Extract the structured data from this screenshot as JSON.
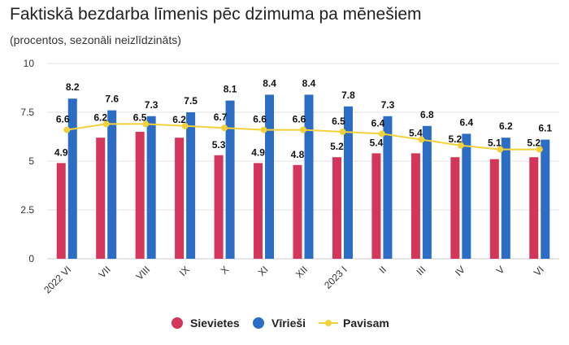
{
  "chart_data": {
    "type": "bar",
    "title": "Faktiskā bezdarba līmenis pēc dzimuma pa mēnešiem",
    "subtitle": "(procentos, sezonāli neizlīdzināts)",
    "categories": [
      "2022 VI",
      "VII",
      "VIII",
      "IX",
      "X",
      "XI",
      "XII",
      "2023 I",
      "II",
      "III",
      "IV",
      "V",
      "VI"
    ],
    "y_ticks": [
      "0",
      "2.5",
      "5",
      "7.5",
      "10"
    ],
    "ylim": [
      0,
      10
    ],
    "grid": true,
    "legend_position": "bottom",
    "series": [
      {
        "name": "Sievietes",
        "kind": "bar",
        "color": "#d3365a",
        "values": [
          4.9,
          6.2,
          6.5,
          6.2,
          5.3,
          4.9,
          4.8,
          5.2,
          5.4,
          5.4,
          5.2,
          5.1,
          5.2
        ],
        "labels": [
          "4.9",
          "6.2",
          "6.5",
          "6.2",
          "5.3",
          "4.9",
          "4.8",
          "5.2",
          "5.4",
          "5.4",
          "5.2",
          "5.1",
          "5.2"
        ]
      },
      {
        "name": "Vīrieši",
        "kind": "bar",
        "color": "#2b6cc4",
        "values": [
          8.2,
          7.6,
          7.3,
          7.5,
          8.1,
          8.4,
          8.4,
          7.8,
          7.3,
          6.8,
          6.4,
          6.2,
          6.1
        ],
        "labels": [
          "8.2",
          "7.6",
          "7.3",
          "7.5",
          "8.1",
          "8.4",
          "8.4",
          "7.8",
          "7.3",
          "6.8",
          "6.4",
          "6.2",
          "6.1"
        ]
      },
      {
        "name": "Pavisam",
        "kind": "line",
        "color": "#f2d13c",
        "values": [
          6.6,
          6.9,
          6.9,
          6.8,
          6.7,
          6.6,
          6.6,
          6.5,
          6.4,
          6.1,
          5.8,
          5.6,
          5.6
        ],
        "labels": [
          "6.6",
          "",
          "",
          "",
          "6.7",
          "6.6",
          "6.6",
          "6.5",
          "6.4",
          "",
          "",
          "",
          ""
        ]
      }
    ]
  }
}
